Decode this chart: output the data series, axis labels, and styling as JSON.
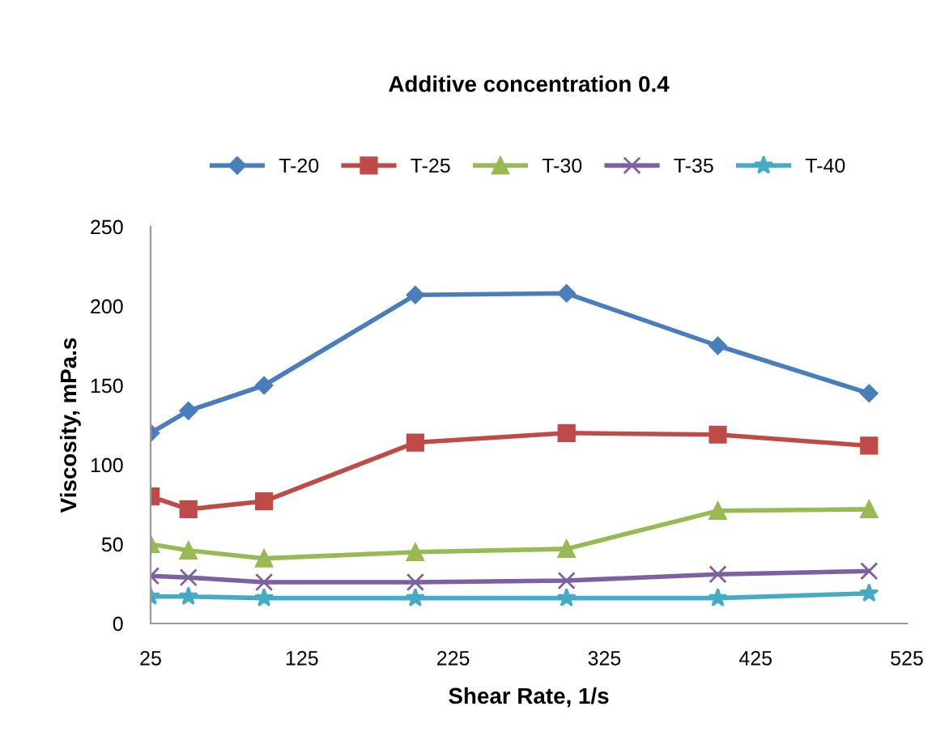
{
  "chart_data": {
    "type": "line",
    "title": "Additive concentration 0.4",
    "xlabel": "Shear Rate, 1/s",
    "ylabel": "Viscosity, mPa.s",
    "x": [
      25,
      50,
      100,
      200,
      300,
      400,
      500
    ],
    "series": [
      {
        "name": "T-20",
        "color": "#4a7ebb",
        "marker": "diamond",
        "values": [
          120,
          134,
          150,
          207,
          208,
          175,
          145
        ]
      },
      {
        "name": "T-25",
        "color": "#be4b48",
        "marker": "square",
        "values": [
          80,
          72,
          77,
          114,
          120,
          119,
          112
        ]
      },
      {
        "name": "T-30",
        "color": "#98b954",
        "marker": "triangle",
        "values": [
          50,
          46,
          41,
          45,
          47,
          71,
          72
        ]
      },
      {
        "name": "T-35",
        "color": "#7d60a0",
        "marker": "cross",
        "values": [
          30,
          29,
          26,
          26,
          27,
          31,
          33
        ]
      },
      {
        "name": "T-40",
        "color": "#46aac5",
        "marker": "star",
        "values": [
          17,
          17,
          16,
          16,
          16,
          16,
          19
        ]
      }
    ],
    "xlim": [
      25,
      525
    ],
    "xticks": [
      25,
      125,
      225,
      325,
      425,
      525
    ],
    "ylim": [
      0,
      250
    ],
    "yticks": [
      0,
      50,
      100,
      150,
      200,
      250
    ],
    "grid": false,
    "legend": "top"
  }
}
